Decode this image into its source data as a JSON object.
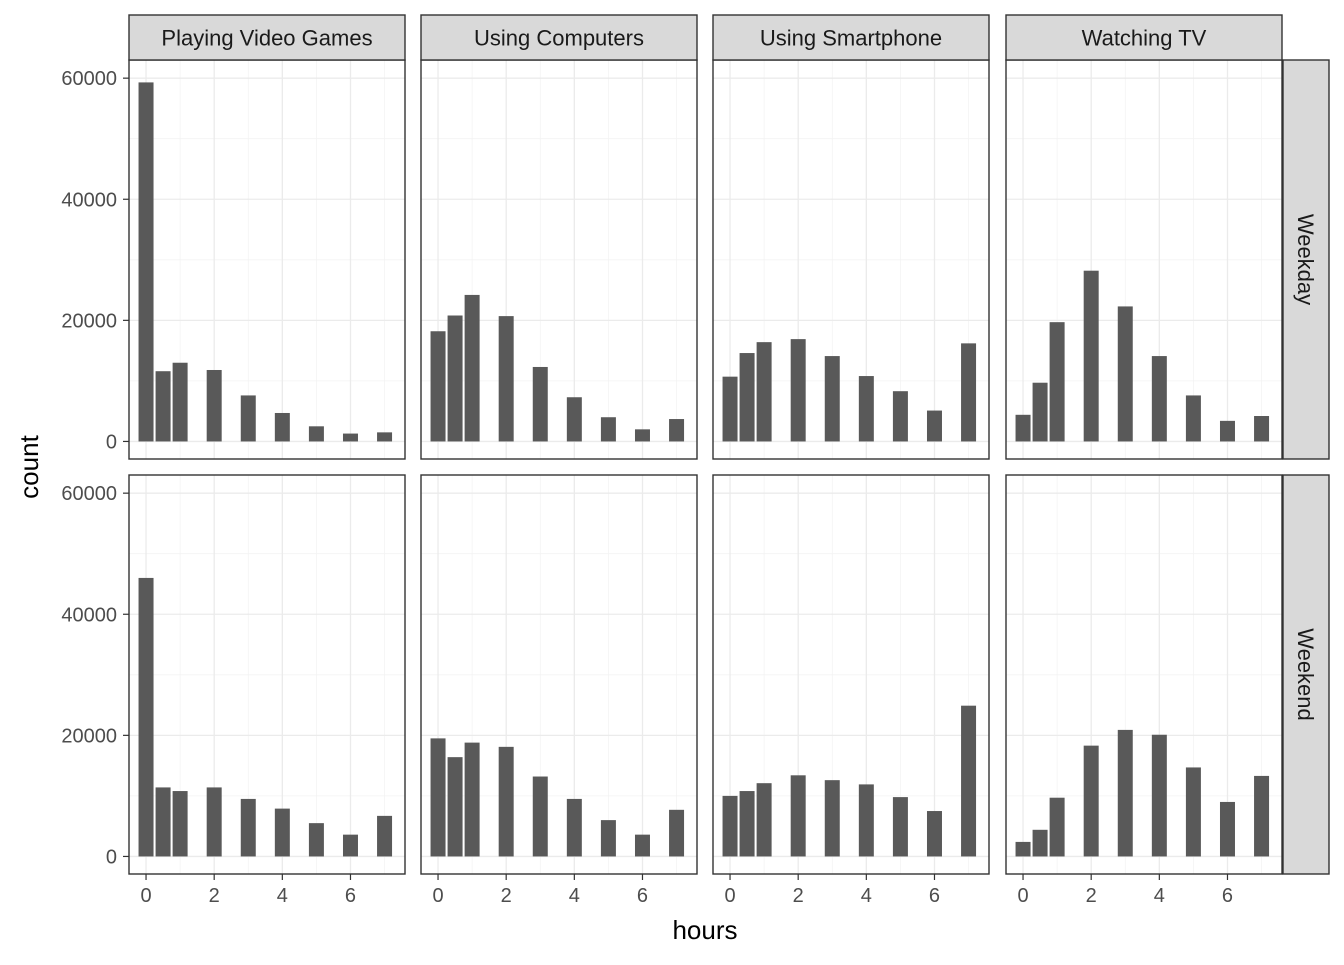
{
  "chart_data": {
    "type": "bar",
    "xlabel": "hours",
    "ylabel": "count",
    "xlim": [
      -0.5,
      7.6
    ],
    "ylim": [
      -2900,
      63000
    ],
    "x_ticks": [
      0,
      2,
      4,
      6
    ],
    "y_ticks": [
      0,
      20000,
      40000,
      60000
    ],
    "grid": true,
    "x": [
      0,
      0.5,
      1,
      2,
      3,
      4,
      5,
      6,
      7
    ],
    "columns": [
      "Playing Video Games",
      "Using Computers",
      "Using Smartphone",
      "Watching TV"
    ],
    "rows": [
      "Weekday",
      "Weekend"
    ],
    "panels": [
      {
        "column": "Playing Video Games",
        "row": "Weekday",
        "values": [
          59300,
          11600,
          13000,
          11800,
          7600,
          4700,
          2500,
          1300,
          1500
        ]
      },
      {
        "column": "Using Computers",
        "row": "Weekday",
        "values": [
          18200,
          20800,
          24200,
          20700,
          12300,
          7300,
          4000,
          2000,
          3700
        ]
      },
      {
        "column": "Using Smartphone",
        "row": "Weekday",
        "values": [
          10700,
          14600,
          16400,
          16900,
          14100,
          10800,
          8300,
          5100,
          16200
        ]
      },
      {
        "column": "Watching TV",
        "row": "Weekday",
        "values": [
          4400,
          9700,
          19700,
          28200,
          22300,
          14100,
          7600,
          3400,
          4200
        ]
      },
      {
        "column": "Playing Video Games",
        "row": "Weekend",
        "values": [
          46000,
          11400,
          10800,
          11400,
          9500,
          7900,
          5500,
          3600,
          6700
        ]
      },
      {
        "column": "Using Computers",
        "row": "Weekend",
        "values": [
          19500,
          16400,
          18800,
          18100,
          13200,
          9500,
          6000,
          3600,
          7700
        ]
      },
      {
        "column": "Using Smartphone",
        "row": "Weekend",
        "values": [
          10000,
          10800,
          12100,
          13400,
          12600,
          11900,
          9800,
          7500,
          24900
        ]
      },
      {
        "column": "Watching TV",
        "row": "Weekend",
        "values": [
          2400,
          4400,
          9700,
          18300,
          20900,
          20100,
          14700,
          9000,
          13300
        ]
      }
    ]
  }
}
